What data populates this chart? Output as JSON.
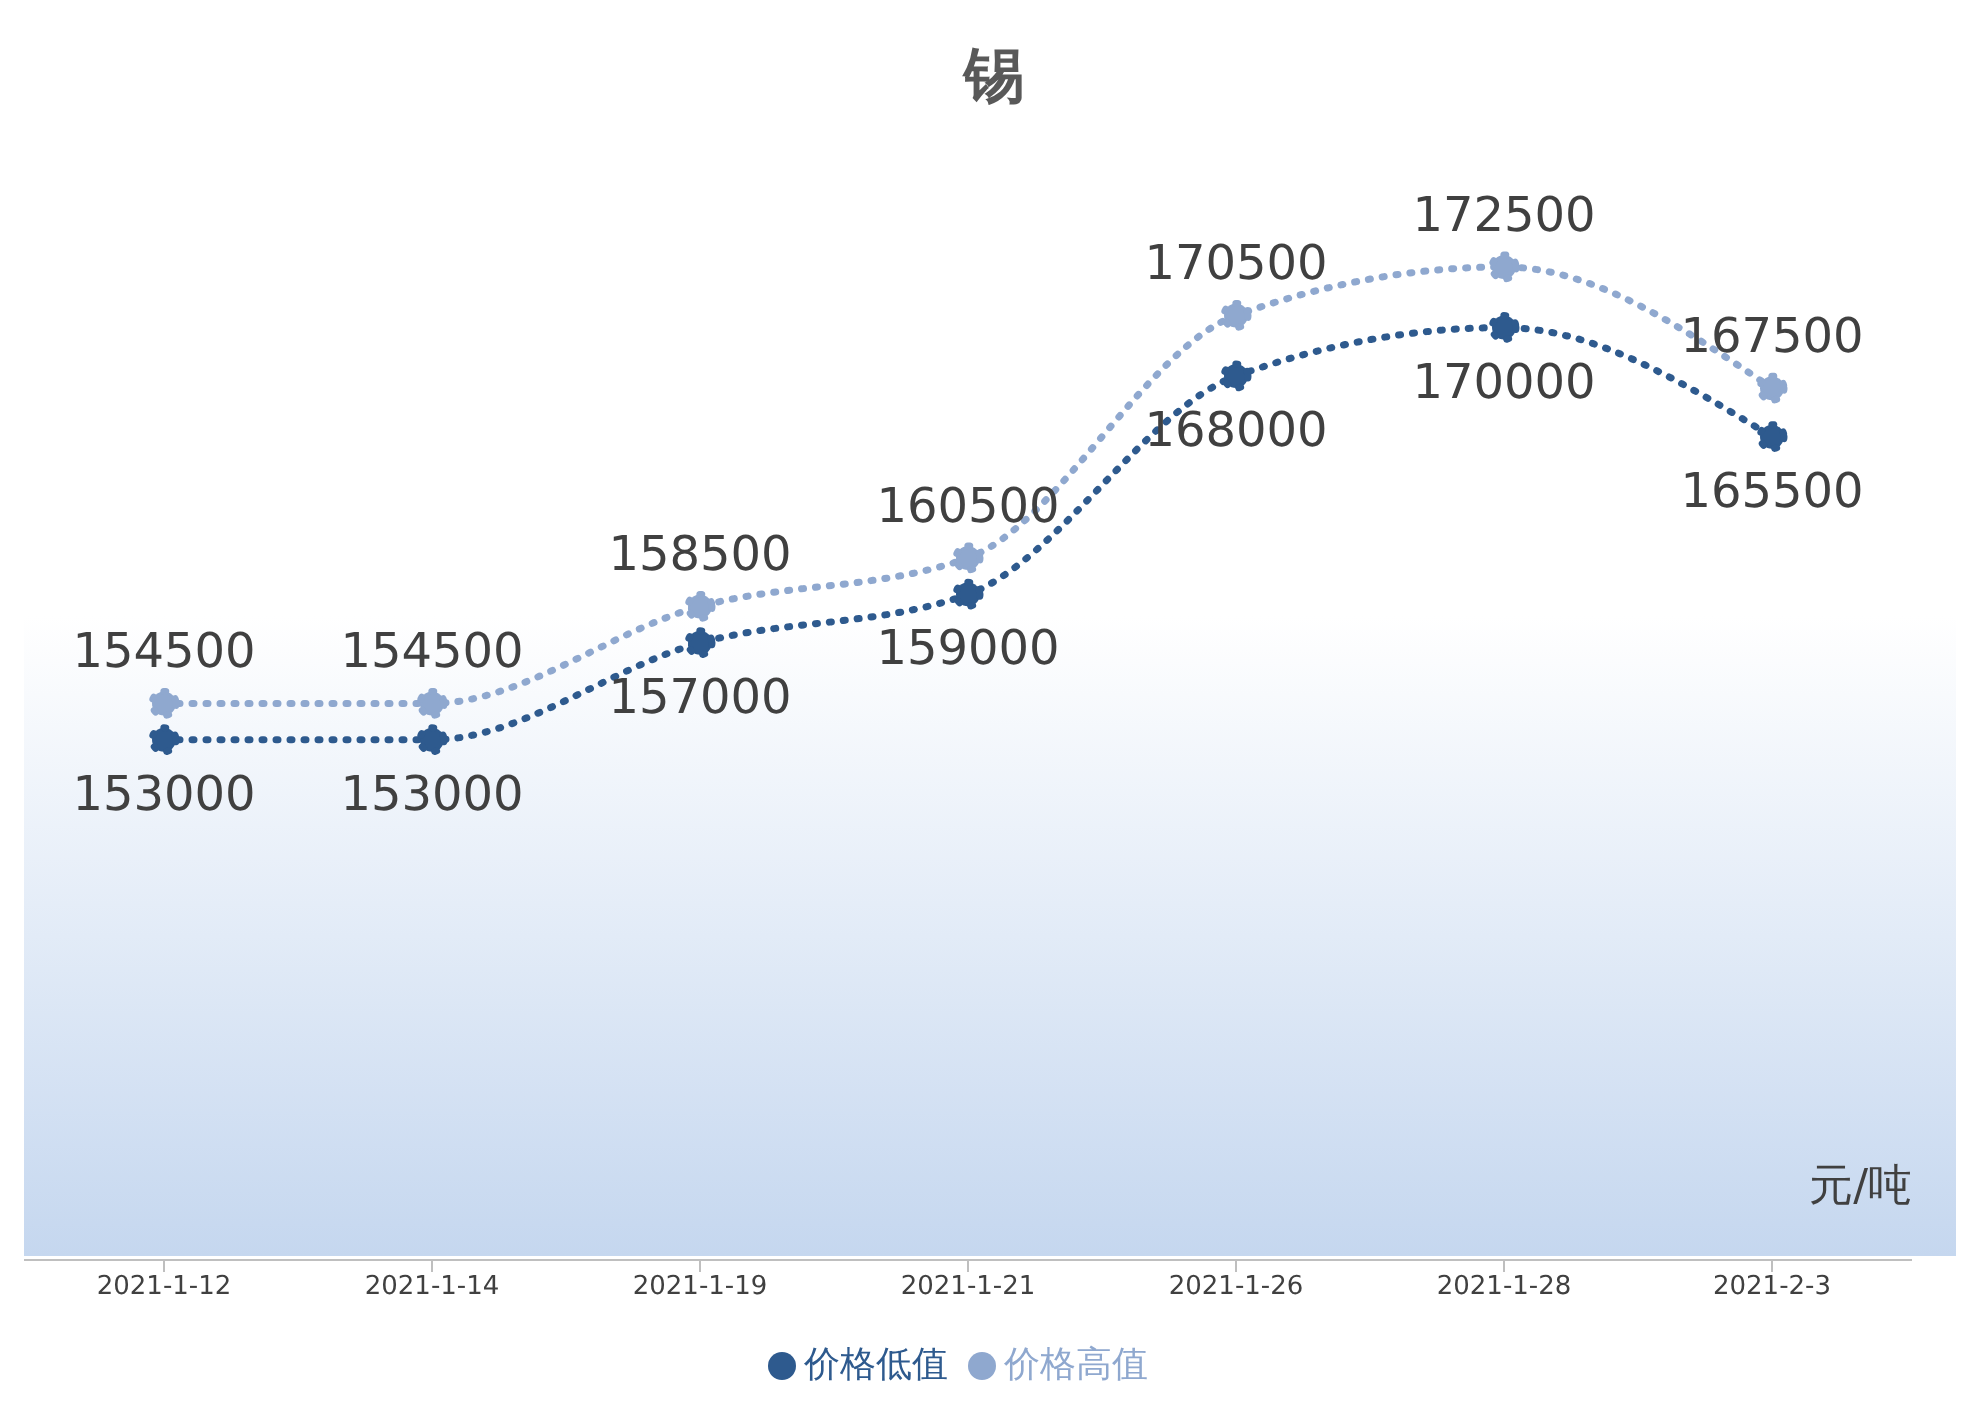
{
  "chart_data": {
    "type": "line",
    "title": "锡",
    "categories": [
      "2021-1-12",
      "2021-1-14",
      "2021-1-19",
      "2021-1-21",
      "2021-1-26",
      "2021-1-28",
      "2021-2-3"
    ],
    "series": [
      {
        "name": "价格低值",
        "color": "#2e5a8e",
        "values": [
          153000,
          153000,
          157000,
          159000,
          168000,
          170000,
          165500
        ]
      },
      {
        "name": "价格高值",
        "color": "#8fa8cf",
        "values": [
          154500,
          154500,
          158500,
          160500,
          170500,
          172500,
          167500
        ]
      }
    ],
    "annotations": [
      "元/吨"
    ],
    "data_labels": true,
    "legend": "bottom",
    "marker": "circle",
    "line_style": "dotted"
  }
}
